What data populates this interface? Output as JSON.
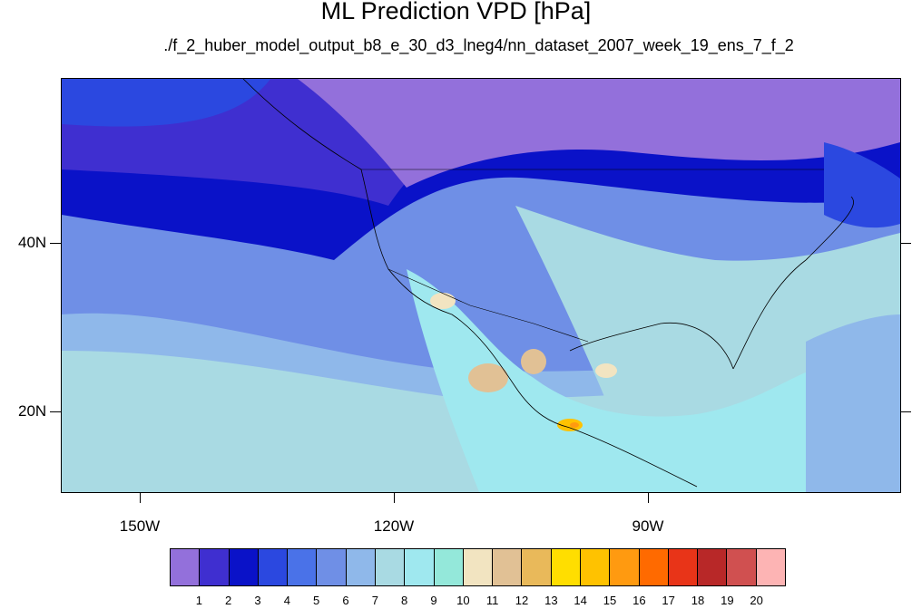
{
  "title": "ML Prediction VPD [hPa]",
  "subtitle": "./f_2_huber_model_output_b8_e_30_d3_lneg4/nn_dataset_2007_week_19_ens_7_f_2",
  "lat_labels": [
    "40N",
    "20N"
  ],
  "lon_labels": [
    "150W",
    "120W",
    "90W"
  ],
  "colorbar": {
    "labels": [
      "1",
      "2",
      "3",
      "4",
      "5",
      "6",
      "7",
      "8",
      "9",
      "10",
      "11",
      "12",
      "13",
      "14",
      "15",
      "16",
      "17",
      "18",
      "19",
      "20"
    ],
    "colors": [
      "#9370db",
      "#3f2fd0",
      "#0a12c8",
      "#2b48e0",
      "#4a72e8",
      "#6f8fe6",
      "#8fb8ea",
      "#a9dae3",
      "#9fe8ef",
      "#94e8da",
      "#f2e4c1",
      "#e1c195",
      "#e9b95a",
      "#ffde00",
      "#ffc200",
      "#ff9a10",
      "#ff6a00",
      "#e83418",
      "#b82828",
      "#d05050",
      "#fdb4b4"
    ]
  }
}
